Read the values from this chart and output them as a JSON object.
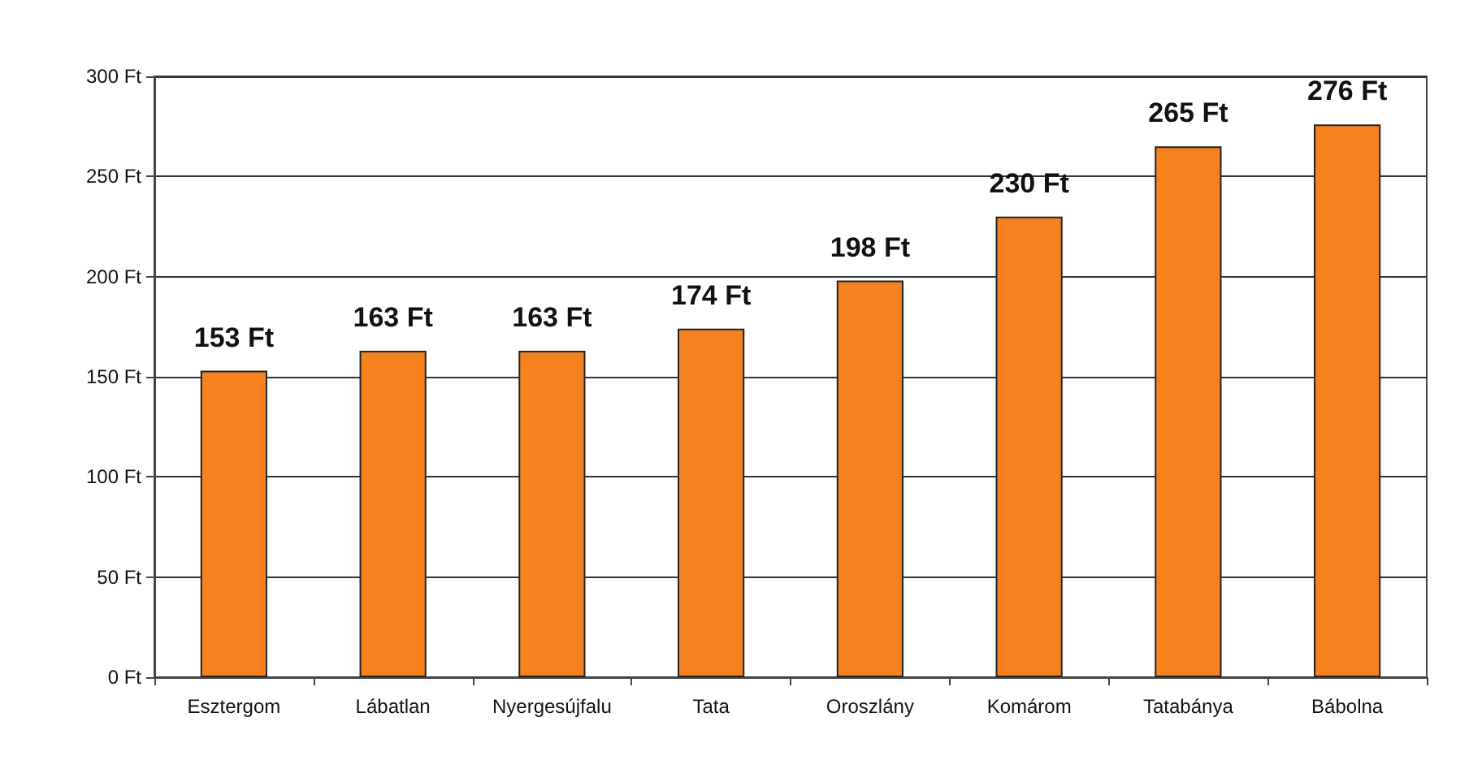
{
  "chart_data": {
    "type": "bar",
    "categories": [
      "Esztergom",
      "Lábatlan",
      "Nyergesújfalu",
      "Tata",
      "Oroszlány",
      "Komárom",
      "Tatabánya",
      "Bábolna"
    ],
    "values": [
      153,
      163,
      163,
      174,
      198,
      230,
      265,
      276
    ],
    "value_labels": [
      "153 Ft",
      "163 Ft",
      "163 Ft",
      "174 Ft",
      "198 Ft",
      "230 Ft",
      "265 Ft",
      "276 Ft"
    ],
    "color": "#f5821f",
    "ylim": [
      0,
      300
    ],
    "yticks": [
      {
        "value": 0,
        "label": "0 Ft"
      },
      {
        "value": 50,
        "label": "50 Ft"
      },
      {
        "value": 100,
        "label": "100 Ft"
      },
      {
        "value": 150,
        "label": "150 Ft"
      },
      {
        "value": 200,
        "label": "200 Ft"
      },
      {
        "value": 250,
        "label": "250 Ft"
      },
      {
        "value": 300,
        "label": "300 Ft"
      }
    ],
    "grid": "y"
  }
}
